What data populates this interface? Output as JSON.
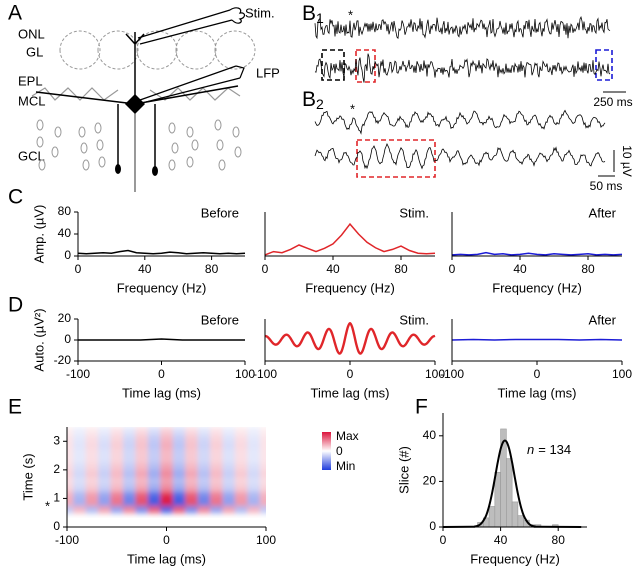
{
  "panel_a": {
    "letter": "A",
    "layers": [
      "ONL",
      "GL",
      "EPL",
      "MCL",
      "GCL"
    ],
    "stim": "Stim.",
    "lfp": "LFP"
  },
  "panel_b": {
    "b1": {
      "letter": "B",
      "subscript": "1",
      "asterisk": "*",
      "scale_time": "250 ms"
    },
    "b2": {
      "letter": "B",
      "subscript": "2",
      "asterisk": "*",
      "scale_time": "50 ms",
      "scale_amp": "10 µV"
    }
  },
  "chart_data": [
    {
      "type": "line",
      "panel": "C",
      "title": "Before",
      "x_label": "Frequency (Hz)",
      "y_label": "Amp. (µV)",
      "x": [
        0,
        5,
        10,
        15,
        20,
        25,
        30,
        35,
        40,
        45,
        50,
        55,
        60,
        65,
        70,
        75,
        80,
        85,
        90,
        95,
        100
      ],
      "series": [
        {
          "color": "#000000",
          "values": [
            5,
            4,
            5,
            6,
            5,
            8,
            10,
            6,
            5,
            4,
            5,
            7,
            6,
            4,
            5,
            6,
            5,
            4,
            5,
            4,
            5
          ]
        }
      ],
      "xlim": [
        0,
        100
      ],
      "ylim": [
        0,
        80
      ],
      "xticks": [
        0,
        40,
        80
      ],
      "yticks": [
        0,
        40,
        80
      ]
    },
    {
      "type": "line",
      "title": "Stim.",
      "x_label": "Frequency (Hz)",
      "x": [
        0,
        5,
        10,
        15,
        20,
        25,
        30,
        35,
        40,
        45,
        50,
        55,
        60,
        65,
        70,
        75,
        80,
        85,
        90,
        95,
        100
      ],
      "series": [
        {
          "color": "#e0262a",
          "values": [
            2,
            8,
            6,
            12,
            20,
            14,
            8,
            14,
            22,
            38,
            58,
            40,
            25,
            15,
            8,
            12,
            18,
            10,
            5,
            4,
            5
          ]
        }
      ],
      "xlim": [
        0,
        100
      ],
      "ylim": [
        0,
        80
      ],
      "xticks": [
        0,
        40,
        80
      ]
    },
    {
      "type": "line",
      "title": "After",
      "x_label": "Frequency (Hz)",
      "x": [
        0,
        5,
        10,
        15,
        20,
        25,
        30,
        35,
        40,
        45,
        50,
        55,
        60,
        65,
        70,
        75,
        80,
        85,
        90,
        95,
        100
      ],
      "series": [
        {
          "color": "#1c1cd6",
          "values": [
            2,
            3,
            2,
            3,
            6,
            3,
            4,
            2,
            3,
            5,
            3,
            2,
            4,
            3,
            2,
            3,
            4,
            2,
            3,
            2,
            3
          ]
        }
      ],
      "xlim": [
        0,
        100
      ],
      "ylim": [
        0,
        80
      ],
      "xticks": [
        0,
        40,
        80
      ]
    },
    {
      "type": "line",
      "panel": "D",
      "title": "Before",
      "x_label": "Time lag (ms)",
      "y_label": "Auto. (µV²)",
      "x": [
        -100,
        -75,
        -50,
        -25,
        0,
        25,
        50,
        75,
        100
      ],
      "series": [
        {
          "color": "#000000",
          "values": [
            0,
            0,
            0,
            0,
            1,
            0,
            0,
            0,
            0
          ]
        }
      ],
      "xlim": [
        -100,
        100
      ],
      "ylim": [
        -20,
        20
      ],
      "xticks": [
        -100,
        0,
        100
      ],
      "yticks": [
        -20,
        0,
        20
      ]
    },
    {
      "type": "line",
      "title": "Stim.",
      "x_label": "Time lag (ms)",
      "smooth": true,
      "x": [
        -100,
        -97.5,
        -95,
        -92.5,
        -90,
        -87.5,
        -85,
        -82.5,
        -80,
        -77.5,
        -75,
        -72.5,
        -70,
        -67.5,
        -65,
        -62.5,
        -60,
        -57.5,
        -55,
        -52.5,
        -50,
        -47.5,
        -45,
        -42.5,
        -40,
        -37.5,
        -35,
        -32.5,
        -30,
        -27.5,
        -25,
        -22.5,
        -20,
        -17.5,
        -15,
        -12.5,
        -10,
        -7.5,
        -5,
        -2.5,
        0,
        2.5,
        5,
        7.5,
        10,
        12.5,
        15,
        17.5,
        20,
        22.5,
        25,
        27.5,
        30,
        32.5,
        35,
        37.5,
        40,
        42.5,
        45,
        47.5,
        50,
        52.5,
        55,
        57.5,
        60,
        62.5,
        65,
        67.5,
        70,
        72.5,
        75,
        77.5,
        80,
        82.5,
        85,
        87.5,
        90,
        92.5,
        95,
        97.5,
        100
      ],
      "series": [
        {
          "color": "#e0262a",
          "values": [
            3.9,
            3.2,
            1.3,
            -1.3,
            -3.5,
            -4.4,
            -3.7,
            -1.5,
            1.5,
            4.0,
            5.1,
            4.3,
            1.7,
            -1.7,
            -4.7,
            -6.0,
            -5.0,
            -2.0,
            2.1,
            5.6,
            7.2,
            6.0,
            2.4,
            -2.5,
            -6.7,
            -8.6,
            -7.3,
            -2.9,
            3.0,
            8.2,
            10.5,
            8.8,
            3.5,
            -3.7,
            -10.0,
            -12.9,
            -10.9,
            -4.4,
            4.5,
            12.4,
            16,
            12.4,
            4.5,
            -4.4,
            -10.9,
            -12.9,
            -10.0,
            -3.7,
            3.5,
            8.8,
            10.5,
            8.2,
            3.0,
            -2.9,
            -7.3,
            -8.6,
            -6.7,
            -2.5,
            2.4,
            6.0,
            7.2,
            5.6,
            2.1,
            -2.0,
            -5.0,
            -6.0,
            -4.7,
            -1.7,
            1.7,
            4.3,
            5.1,
            4.0,
            1.5,
            -1.5,
            -3.7,
            -4.4,
            -3.5,
            -1.3,
            1.3,
            3.2,
            3.9
          ]
        }
      ],
      "xlim": [
        -100,
        100
      ],
      "ylim": [
        -20,
        20
      ],
      "xticks": [
        -100,
        0,
        100
      ]
    },
    {
      "type": "line",
      "title": "After",
      "x_label": "Time lag (ms)",
      "x": [
        -100,
        -75,
        -50,
        -25,
        0,
        25,
        50,
        75,
        100
      ],
      "series": [
        {
          "color": "#1c1cd6",
          "values": [
            0,
            0.5,
            0,
            0.5,
            0.5,
            0.5,
            0,
            0.5,
            0
          ]
        }
      ],
      "xlim": [
        -100,
        100
      ],
      "ylim": [
        -20,
        20
      ],
      "xticks": [
        -100,
        0,
        100
      ]
    },
    {
      "type": "heatmap",
      "panel": "E",
      "x_label": "Time lag (ms)",
      "y_label": "Time (s)",
      "annotation": "*",
      "x": [
        -100,
        -87.5,
        -75,
        -62.5,
        -50,
        -37.5,
        -25,
        -12.5,
        0,
        12.5,
        25,
        37.5,
        50,
        62.5,
        75,
        87.5,
        100
      ],
      "y": [
        0.625,
        0.875,
        1.125,
        1.375,
        1.625,
        1.875,
        2.125,
        2.375,
        2.625,
        2.875,
        3.125,
        3.375
      ],
      "z": [
        [
          -0.28,
          0.32,
          -0.36,
          0.4,
          -0.48,
          0.52,
          -0.6,
          0.68,
          -0.8,
          0.68,
          -0.6,
          0.52,
          -0.48,
          0.4,
          -0.36,
          0.32,
          -0.28
        ],
        [
          0.35,
          -0.4,
          0.45,
          -0.5,
          0.6,
          -0.65,
          0.75,
          -0.85,
          1,
          -0.85,
          0.75,
          -0.65,
          0.6,
          -0.5,
          0.45,
          -0.4,
          0.35
        ],
        [
          0.32,
          -0.36,
          0.41,
          -0.45,
          0.54,
          -0.59,
          0.68,
          -0.77,
          0.9,
          -0.77,
          0.68,
          -0.59,
          0.54,
          -0.45,
          0.41,
          -0.36,
          0.32
        ],
        [
          0.18,
          -0.2,
          0.23,
          -0.25,
          0.3,
          -0.33,
          0.38,
          -0.43,
          0.5,
          -0.43,
          0.38,
          -0.33,
          0.3,
          -0.25,
          0.23,
          -0.2,
          0.18
        ],
        [
          0.14,
          -0.16,
          0.18,
          -0.2,
          0.24,
          -0.26,
          0.3,
          -0.34,
          0.4,
          -0.34,
          0.3,
          -0.26,
          0.24,
          -0.2,
          0.18,
          -0.16,
          0.14
        ],
        [
          0.18,
          -0.2,
          0.23,
          -0.25,
          0.3,
          -0.33,
          0.38,
          -0.43,
          0.5,
          -0.43,
          0.38,
          -0.33,
          0.3,
          -0.25,
          0.23,
          -0.2,
          0.18
        ],
        [
          0.14,
          -0.16,
          0.18,
          -0.2,
          0.24,
          -0.26,
          0.3,
          -0.34,
          0.4,
          -0.34,
          0.3,
          -0.26,
          0.24,
          -0.2,
          0.18,
          -0.16,
          0.14
        ],
        [
          0.11,
          -0.12,
          0.14,
          -0.15,
          0.18,
          -0.2,
          0.23,
          -0.26,
          0.3,
          -0.26,
          0.23,
          -0.2,
          0.18,
          -0.15,
          0.14,
          -0.12,
          0.11
        ],
        [
          0.11,
          -0.12,
          0.14,
          -0.15,
          0.18,
          -0.2,
          0.23,
          -0.26,
          0.3,
          -0.26,
          0.23,
          -0.2,
          0.18,
          -0.15,
          0.14,
          -0.12,
          0.11
        ],
        [
          0.12,
          -0.14,
          0.16,
          -0.18,
          0.21,
          -0.23,
          0.26,
          -0.3,
          0.35,
          -0.3,
          0.26,
          -0.23,
          0.21,
          -0.18,
          0.16,
          -0.14,
          0.12
        ],
        [
          0.11,
          -0.12,
          0.14,
          -0.15,
          0.18,
          -0.2,
          0.23,
          -0.26,
          0.3,
          -0.26,
          0.23,
          -0.2,
          0.18,
          -0.15,
          0.14,
          -0.12,
          0.11
        ],
        [
          0.07,
          -0.08,
          0.09,
          -0.1,
          0.12,
          -0.13,
          0.15,
          -0.17,
          0.2,
          -0.17,
          0.15,
          -0.13,
          0.12,
          -0.1,
          0.09,
          -0.08,
          0.07
        ]
      ],
      "zlim": [
        -1,
        1
      ],
      "colorbar_labels": [
        "Max",
        "0",
        "Min"
      ],
      "xlim": [
        -100,
        100
      ],
      "ylim": [
        0,
        3.5
      ],
      "xticks": [
        -100,
        0,
        100
      ],
      "yticks": [
        0,
        1,
        2,
        3
      ]
    },
    {
      "type": "histogram",
      "panel": "F",
      "x_label": "Frequency (Hz)",
      "y_label": "Slice (#)",
      "annotation_symbol": "n",
      "annotation_text": "= 134",
      "color": "#bdbdbd",
      "bins": [
        20,
        24,
        28,
        32,
        36,
        40,
        44,
        48,
        52,
        56,
        60,
        64,
        68,
        72,
        76,
        80
      ],
      "counts": [
        0,
        2,
        4,
        9,
        24,
        43,
        30,
        11,
        5,
        3,
        1,
        1,
        0,
        0,
        1
      ],
      "fit": {
        "color": "#000000",
        "x": [
          0,
          20,
          22,
          24,
          26,
          28,
          30,
          32,
          34,
          36,
          38,
          40,
          42,
          44,
          46,
          48,
          50,
          52,
          54,
          56,
          58,
          60,
          62,
          64,
          66,
          96
        ],
        "values": [
          0,
          0.1,
          0.2,
          0.5,
          1.2,
          2.7,
          5.1,
          9.1,
          14.6,
          21.3,
          28.3,
          34.2,
          37.5,
          37.5,
          34.2,
          28.3,
          21.3,
          14.6,
          9.1,
          5.1,
          2.7,
          1.2,
          0.5,
          0.2,
          0.1,
          0
        ]
      },
      "xlim": [
        0,
        100
      ],
      "ylim": [
        0,
        50
      ],
      "xticks": [
        0,
        40,
        80
      ],
      "yticks": [
        0,
        20,
        40
      ]
    }
  ]
}
